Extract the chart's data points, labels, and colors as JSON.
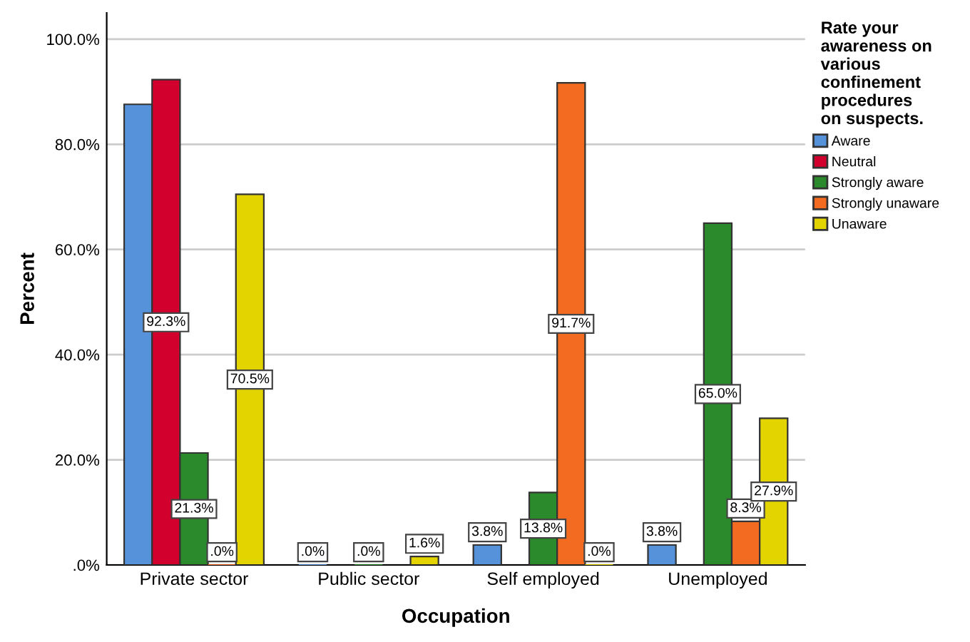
{
  "chart_data": {
    "type": "bar",
    "xlabel": "Occupation",
    "ylabel": "Percent",
    "legend_title": "Rate your\nawareness on\nvarious\nconfinement\nprocedures\non suspects.",
    "categories": [
      "Private sector",
      "Public sector",
      "Self employed",
      "Unemployed"
    ],
    "series": [
      {
        "name": "Aware",
        "color": "#5592d9",
        "values": [
          87.6,
          0,
          3.8,
          3.8
        ],
        "value_labels": [
          null,
          ".0%",
          "3.8%",
          "3.8%"
        ]
      },
      {
        "name": "Neutral",
        "color": "#d2002c",
        "values": [
          92.3,
          null,
          null,
          null
        ],
        "value_labels": [
          "92.3%",
          null,
          null,
          null
        ]
      },
      {
        "name": "Strongly aware",
        "color": "#2b8a2b",
        "values": [
          21.3,
          0,
          13.8,
          65.0
        ],
        "value_labels": [
          "21.3%",
          ".0%",
          "13.8%",
          "65.0%"
        ]
      },
      {
        "name": "Strongly unaware",
        "color": "#f26b21",
        "values": [
          0,
          null,
          91.7,
          8.3
        ],
        "value_labels": [
          ".0%",
          null,
          "91.7%",
          "8.3%"
        ]
      },
      {
        "name": "Unaware",
        "color": "#e3d400",
        "values": [
          70.5,
          1.6,
          0,
          27.9
        ],
        "value_labels": [
          "70.5%",
          "1.6%",
          ".0%",
          "27.9%"
        ]
      }
    ],
    "ylim": [
      0,
      105
    ],
    "yticks": [
      {
        "value": 0,
        "label": ".0%"
      },
      {
        "value": 20,
        "label": "20.0%"
      },
      {
        "value": 40,
        "label": "40.0%"
      },
      {
        "value": 60,
        "label": "60.0%"
      },
      {
        "value": 80,
        "label": "80.0%"
      },
      {
        "value": 100,
        "label": "100.0%"
      }
    ],
    "grid": "y",
    "legend": "right"
  }
}
